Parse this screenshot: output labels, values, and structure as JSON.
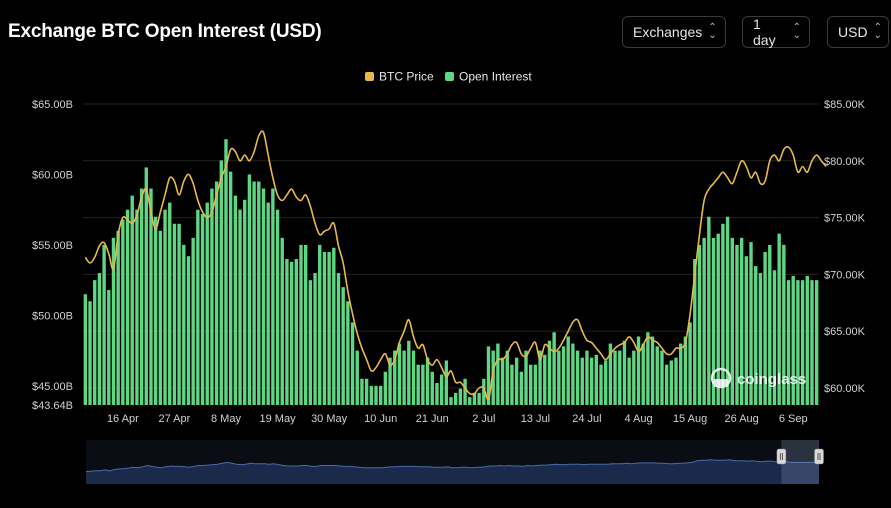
{
  "header": {
    "title": "Exchange BTC Open Interest (USD)",
    "controls": {
      "exchanges": "Exchanges",
      "interval": "1 day",
      "currency": "USD"
    }
  },
  "watermark": "coinglass",
  "colors": {
    "background": "#000000",
    "price_line": "#e8b84b",
    "open_interest_bar": "#5fd684",
    "navigator_fill": "#1b2a4a",
    "navigator_line": "#4b68a8"
  },
  "chart_data": {
    "type": "bar",
    "title": "Exchange BTC Open Interest (USD)",
    "legend_position": "top-center",
    "grid": true,
    "x_tick_labels": [
      "16 Apr",
      "27 Apr",
      "8 May",
      "19 May",
      "30 May",
      "10 Jun",
      "21 Jun",
      "2 Jul",
      "13 Jul",
      "24 Jul",
      "4 Aug",
      "15 Aug",
      "26 Aug",
      "6 Sep"
    ],
    "x_tick_index": [
      8,
      19,
      30,
      41,
      52,
      63,
      74,
      85,
      96,
      107,
      118,
      129,
      140,
      151
    ],
    "y_left": {
      "ticks": [
        "$65.00B",
        "$60.00B",
        "$55.00B",
        "$50.00B",
        "$45.00B",
        "$43.64B"
      ],
      "tick_values": [
        65,
        60,
        55,
        50,
        45,
        43.64
      ],
      "range": [
        43.64,
        65.0
      ],
      "unit": "B USD"
    },
    "y_right": {
      "ticks": [
        "$85.00K",
        "$80.00K",
        "$75.00K",
        "$70.00K",
        "$65.00K",
        "$60.00K"
      ],
      "tick_values": [
        85,
        80,
        75,
        70,
        65,
        60
      ],
      "range": [
        58.5,
        85.0
      ],
      "unit": "K USD"
    },
    "series": [
      {
        "name": "BTC Price",
        "type": "line",
        "axis": "right",
        "values": [
          71.5,
          71.0,
          71.5,
          72.5,
          72.8,
          71.8,
          70.5,
          73.5,
          75.0,
          74.8,
          74.5,
          75.2,
          76.8,
          77.5,
          75.5,
          74.0,
          75.5,
          77.0,
          78.5,
          78.2,
          77.0,
          78.2,
          78.8,
          78.0,
          76.5,
          75.5,
          75.0,
          75.5,
          77.0,
          78.5,
          79.5,
          81.0,
          80.8,
          80.0,
          80.5,
          80.0,
          80.8,
          82.2,
          82.5,
          80.5,
          78.5,
          77.0,
          76.5,
          77.0,
          77.5,
          76.8,
          76.5,
          77.0,
          76.0,
          74.5,
          73.5,
          73.8,
          74.0,
          74.5,
          72.5,
          71.0,
          68.5,
          66.5,
          64.8,
          63.5,
          62.5,
          61.5,
          61.8,
          62.5,
          63.0,
          62.0,
          62.5,
          64.0,
          65.0,
          66.0,
          64.5,
          63.5,
          63.8,
          62.5,
          62.0,
          62.5,
          61.8,
          61.0,
          61.5,
          60.5,
          60.5,
          60.0,
          59.5,
          59.5,
          60.0,
          60.0,
          59.0,
          61.5,
          62.5,
          62.5,
          63.0,
          63.8,
          64.0,
          63.0,
          62.8,
          63.5,
          64.0,
          62.5,
          63.8,
          63.5,
          63.2,
          63.5,
          64.2,
          65.0,
          65.8,
          66.0,
          65.0,
          64.2,
          64.0,
          63.5,
          63.0,
          62.5,
          63.0,
          63.5,
          63.8,
          64.0,
          64.5,
          64.0,
          63.2,
          63.8,
          64.5,
          64.2,
          64.0,
          63.5,
          63.0,
          63.0,
          63.5,
          63.5,
          64.0,
          66.5,
          70.0,
          73.5,
          76.5,
          77.5,
          78.0,
          78.5,
          79.0,
          78.5,
          78.0,
          79.0,
          80.0,
          79.5,
          78.5,
          79.0,
          78.0,
          78.2,
          80.0,
          80.5,
          80.0,
          81.0,
          81.2,
          80.5,
          79.0,
          79.5,
          79.0,
          80.0,
          80.5,
          80.0,
          79.5
        ],
        "color": "#e8b84b"
      },
      {
        "name": "Open Interest",
        "type": "bar",
        "axis": "left",
        "values": [
          51.5,
          51.0,
          52.5,
          53.0,
          55.0,
          51.8,
          55.5,
          56.0,
          56.8,
          57.5,
          58.5,
          57.5,
          59.0,
          60.5,
          59.0,
          57.0,
          56.0,
          57.5,
          58.0,
          56.5,
          56.5,
          55.0,
          54.2,
          55.5,
          57.5,
          57.2,
          58.0,
          59.0,
          59.5,
          61.0,
          62.5,
          60.2,
          58.5,
          57.5,
          58.2,
          60.0,
          59.5,
          59.5,
          59.0,
          58.0,
          59.0,
          57.5,
          55.5,
          54.0,
          53.8,
          54.0,
          55.0,
          55.0,
          52.5,
          53.0,
          55.0,
          54.5,
          54.5,
          54.8,
          53.0,
          52.0,
          51.0,
          49.5,
          47.5,
          45.5,
          45.5,
          45.0,
          45.0,
          45.0,
          46.0,
          47.0,
          47.5,
          48.0,
          47.5,
          48.2,
          47.5,
          46.5,
          46.5,
          47.0,
          46.0,
          45.2,
          45.8,
          46.8,
          44.2,
          44.5,
          44.8,
          45.5,
          44.2,
          44.5,
          44.5,
          45.5,
          47.8,
          47.5,
          48.0,
          47.0,
          47.5,
          46.5,
          47.0,
          46.0,
          47.5,
          46.5,
          46.5,
          47.5,
          47.2,
          48.2,
          48.8,
          47.5,
          47.8,
          48.5,
          48.0,
          47.5,
          47.0,
          47.5,
          47.0,
          47.2,
          46.5,
          46.8,
          48.0,
          47.5,
          47.5,
          48.2,
          47.0,
          47.5,
          48.5,
          48.0,
          48.8,
          48.5,
          47.8,
          47.5,
          46.5,
          46.8,
          47.0,
          48.0,
          48.5,
          49.5,
          54.0,
          55.0,
          55.5,
          57.0,
          55.5,
          55.8,
          56.5,
          57.0,
          55.5,
          55.0,
          55.5,
          54.2,
          55.2,
          53.5,
          53.0,
          54.5,
          55.0,
          53.2,
          55.8,
          55.0,
          52.5,
          52.8,
          52.5,
          52.5,
          52.8,
          52.5,
          52.5
        ],
        "color": "#5fd684"
      }
    ]
  },
  "navigator": {
    "values": [
      0.28,
      0.29,
      0.3,
      0.3,
      0.32,
      0.3,
      0.33,
      0.34,
      0.35,
      0.36,
      0.38,
      0.37,
      0.39,
      0.42,
      0.4,
      0.38,
      0.37,
      0.39,
      0.41,
      0.4,
      0.4,
      0.39,
      0.38,
      0.4,
      0.42,
      0.42,
      0.43,
      0.44,
      0.45,
      0.47,
      0.49,
      0.47,
      0.45,
      0.44,
      0.45,
      0.47,
      0.46,
      0.46,
      0.46,
      0.45,
      0.46,
      0.44,
      0.42,
      0.41,
      0.41,
      0.41,
      0.42,
      0.42,
      0.4,
      0.4,
      0.42,
      0.42,
      0.42,
      0.42,
      0.41,
      0.4,
      0.4,
      0.39,
      0.38,
      0.37,
      0.37,
      0.37,
      0.37,
      0.37,
      0.38,
      0.39,
      0.39,
      0.4,
      0.4,
      0.4,
      0.4,
      0.39,
      0.39,
      0.39,
      0.38,
      0.38,
      0.38,
      0.39,
      0.37,
      0.37,
      0.38,
      0.38,
      0.37,
      0.38,
      0.38,
      0.39,
      0.41,
      0.41,
      0.42,
      0.41,
      0.42,
      0.41,
      0.41,
      0.4,
      0.42,
      0.41,
      0.42,
      0.43,
      0.43,
      0.44,
      0.45,
      0.44,
      0.44,
      0.45,
      0.45,
      0.45,
      0.44,
      0.45,
      0.45,
      0.45,
      0.45,
      0.45,
      0.46,
      0.46,
      0.46,
      0.47,
      0.46,
      0.47,
      0.48,
      0.48,
      0.48,
      0.48,
      0.47,
      0.47,
      0.46,
      0.46,
      0.47,
      0.47,
      0.48,
      0.49,
      0.53,
      0.54,
      0.54,
      0.55,
      0.54,
      0.54,
      0.54,
      0.55,
      0.53,
      0.53,
      0.53,
      0.52,
      0.53,
      0.51,
      0.51,
      0.52,
      0.52,
      0.5,
      0.52,
      0.51,
      0.49,
      0.49,
      0.49,
      0.49,
      0.49,
      0.49,
      0.49
    ],
    "selection_start_index": 148
  }
}
